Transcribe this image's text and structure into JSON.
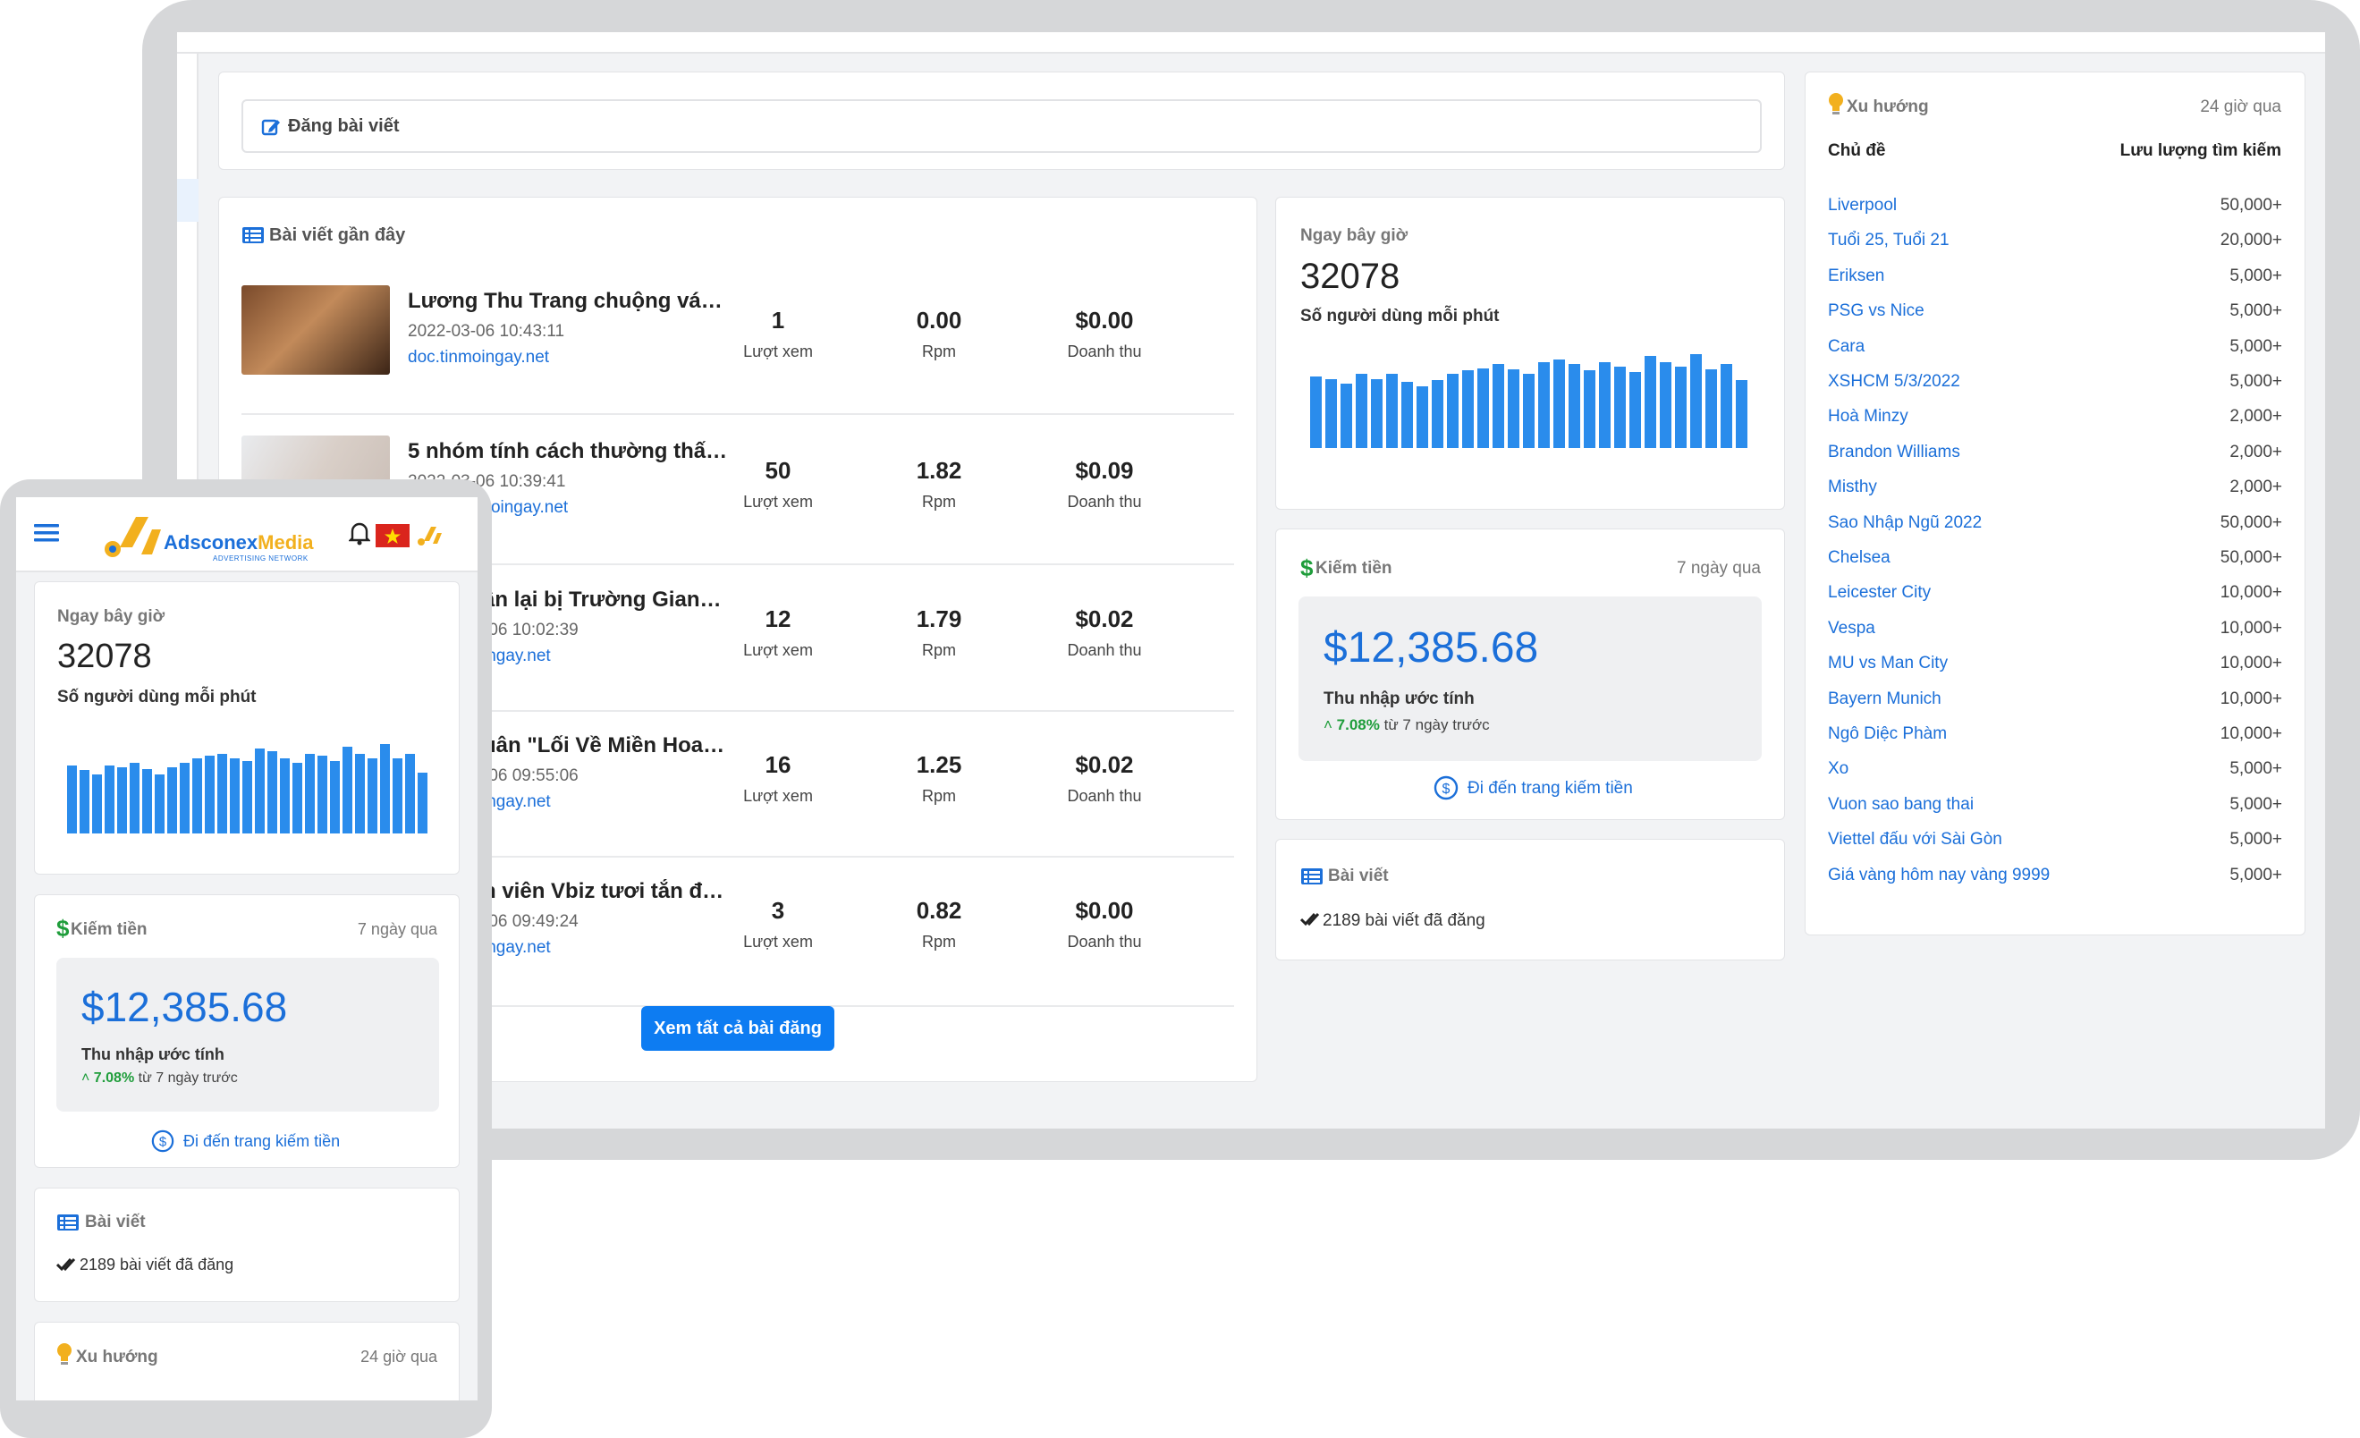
{
  "desktop": {
    "compose": {
      "label": "Đăng bài viết"
    },
    "recent": {
      "title": "Bài viết gần đây",
      "posts": [
        {
          "title": "Lương Thu Trang chuộng váy á...",
          "date": "2022-03-06 10:43:11",
          "source": "doc.tinmoingay.net",
          "views": "1",
          "rpm": "0.00",
          "revenue": "$0.00"
        },
        {
          "title": "5 nhóm tính cách thường thấy ...",
          "date": "2022-03-06 10:39:41",
          "source": "beyeu.tinmoingay.net",
          "views": "50",
          "rpm": "1.82",
          "revenue": "$0.09"
        },
        {
          "title": "ân lại bị Trường Giang ...",
          "date": "-06 10:02:39",
          "source": "ingay.net",
          "views": "12",
          "rpm": "1.79",
          "revenue": "$0.02"
        },
        {
          "title": "uân \"Lối Về Miền Hoa\":...",
          "date": "-06 09:55:06",
          "source": "ingay.net",
          "views": "16",
          "rpm": "1.25",
          "revenue": "$0.02"
        },
        {
          "title": "n viên Vbiz tươi tắn đón ...",
          "date": "-06 09:49:24",
          "source": "ingay.net",
          "views": "3",
          "rpm": "0.82",
          "revenue": "$0.00"
        }
      ],
      "labels": {
        "views": "Lượt xem",
        "rpm": "Rpm",
        "revenue": "Doanh thu"
      },
      "view_all": "Xem tất cả bài đăng"
    },
    "realtime": {
      "title": "Ngay bây giờ",
      "value": "32078",
      "caption": "Số người dùng mỗi phút",
      "bars": [
        58,
        56,
        52,
        60,
        56,
        60,
        54,
        50,
        55,
        60,
        63,
        65,
        68,
        64,
        60,
        70,
        72,
        68,
        63,
        70,
        66,
        62,
        75,
        70,
        66,
        76,
        64,
        68,
        55
      ]
    },
    "earnings": {
      "title": "Kiếm tiền",
      "period": "7 ngày qua",
      "amount": "$12,385.68",
      "caption": "Thu nhập ước tính",
      "change": "7.08%",
      "change_note": "từ 7 ngày trước",
      "link": "Đi đến trang kiếm tiền"
    },
    "articles": {
      "title": "Bài viết",
      "count_text": "2189 bài viết đã đăng"
    },
    "trends": {
      "title": "Xu hướng",
      "period": "24 giờ qua",
      "col_topic": "Chủ đề",
      "col_volume": "Lưu lượng tìm kiếm",
      "rows": [
        {
          "topic": "Liverpool",
          "volume": "50,000+"
        },
        {
          "topic": "Tuổi 25, Tuổi 21",
          "volume": "20,000+"
        },
        {
          "topic": "Eriksen",
          "volume": "5,000+"
        },
        {
          "topic": "PSG vs Nice",
          "volume": "5,000+"
        },
        {
          "topic": "Cara",
          "volume": "5,000+"
        },
        {
          "topic": "XSHCM 5/3/2022",
          "volume": "5,000+"
        },
        {
          "topic": "Hoà Minzy",
          "volume": "2,000+"
        },
        {
          "topic": "Brandon Williams",
          "volume": "2,000+"
        },
        {
          "topic": "Misthy",
          "volume": "2,000+"
        },
        {
          "topic": "Sao Nhập Ngũ 2022",
          "volume": "50,000+"
        },
        {
          "topic": "Chelsea",
          "volume": "50,000+"
        },
        {
          "topic": "Leicester City",
          "volume": "10,000+"
        },
        {
          "topic": "Vespa",
          "volume": "10,000+"
        },
        {
          "topic": "MU vs Man City",
          "volume": "10,000+"
        },
        {
          "topic": "Bayern Munich",
          "volume": "10,000+"
        },
        {
          "topic": "Ngô Diệc Phàm",
          "volume": "10,000+"
        },
        {
          "topic": "Xo",
          "volume": "5,000+"
        },
        {
          "topic": "Vuon sao bang thai",
          "volume": "5,000+"
        },
        {
          "topic": "Viettel đấu với Sài Gòn",
          "volume": "5,000+"
        },
        {
          "topic": "Giá vàng hôm nay vàng 9999",
          "volume": "5,000+"
        }
      ]
    }
  },
  "mobile": {
    "brand": {
      "name_part1": "Adsconex",
      "name_part2": "Media",
      "tagline": "ADVERTISING NETWORK"
    },
    "realtime": {
      "title": "Ngay bây giờ",
      "value": "32078",
      "caption": "Số người dùng mỗi phút",
      "bars": [
        58,
        54,
        50,
        58,
        56,
        60,
        55,
        50,
        56,
        60,
        64,
        66,
        68,
        64,
        62,
        72,
        70,
        64,
        60,
        68,
        66,
        62,
        74,
        68,
        64,
        76,
        64,
        68,
        52
      ]
    },
    "earnings": {
      "title": "Kiếm tiền",
      "period": "7 ngày qua",
      "amount": "$12,385.68",
      "caption": "Thu nhập ước tính",
      "change": "7.08%",
      "change_note": "từ 7 ngày trước",
      "link": "Đi đến trang kiếm tiền"
    },
    "articles": {
      "title": "Bài viết",
      "count_text": "2189 bài viết đã đăng"
    },
    "trends": {
      "title": "Xu hướng",
      "period": "24 giờ qua"
    }
  },
  "colors": {
    "accent": "#0d7cf2",
    "link": "#1b6fd9",
    "bar": "#2a8cec",
    "positive": "#1f9d3b",
    "dollar": "#1f9d3b",
    "bulb": "#f2b01e"
  }
}
